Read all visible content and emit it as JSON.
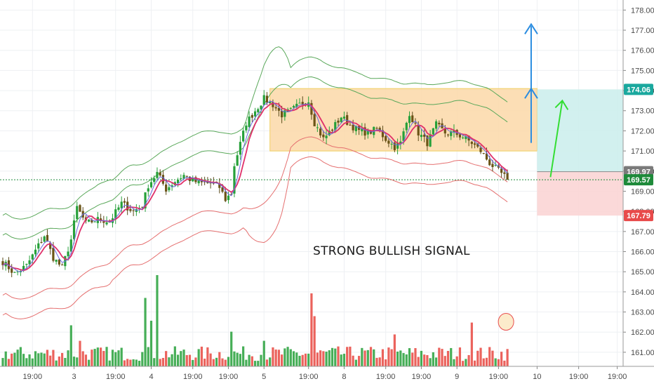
{
  "chart_data": {
    "type": "candlestick",
    "ylim": [
      160.3,
      178.5
    ],
    "y_ticks": [
      "161.00",
      "162.00",
      "163.00",
      "164.00",
      "165.00",
      "166.00",
      "167.00",
      "168.00",
      "169.00",
      "170.00",
      "171.00",
      "172.00",
      "173.00",
      "174.00",
      "175.00",
      "176.00",
      "177.00",
      "178.00"
    ],
    "x_ticks": [
      {
        "label": "19:00",
        "bar": 10
      },
      {
        "label": "3",
        "bar": 24
      },
      {
        "label": "19:00",
        "bar": 38
      },
      {
        "label": "4",
        "bar": 50
      },
      {
        "label": "19:00",
        "bar": 64
      },
      {
        "label": "19:00",
        "bar": 76
      },
      {
        "label": "5",
        "bar": 88
      },
      {
        "label": "19:00",
        "bar": 103
      },
      {
        "label": "8",
        "bar": 115
      },
      {
        "label": "19:00",
        "bar": 129
      },
      {
        "label": "19:00",
        "bar": 141
      },
      {
        "label": "9",
        "bar": 153
      },
      {
        "label": "19:00",
        "bar": 167
      },
      {
        "label": "10",
        "bar": 180
      },
      {
        "label": "19:00",
        "bar": 194
      },
      {
        "label": "19:00",
        "bar": 207
      }
    ],
    "price_tags": [
      {
        "label": "174.06",
        "value": 174.06,
        "color": "#1aa89e"
      },
      {
        "label": "169.97",
        "value": 169.97,
        "color": "#7a7a7a"
      },
      {
        "label": "169.57",
        "value": 169.57,
        "color": "#1e8a3a"
      },
      {
        "label": "167.79",
        "value": 167.79,
        "color": "#e84a4a"
      }
    ],
    "annotation": "STRONG BULLISH SIGNAL",
    "current_price": 169.57,
    "range_box": {
      "from_bar": 90,
      "to_bar": 180,
      "low": 171.0,
      "high": 174.1
    },
    "target_zone": {
      "from_bar": 180,
      "to_bar": 215,
      "entry": 169.97,
      "target": 174.06,
      "stop": 167.79
    },
    "colors": {
      "up": "#26a03a",
      "down": "#e8463f",
      "band_upper": "#5aa85a",
      "band_lower": "#e57070",
      "ma_fast": "#e0306a",
      "ma_slow": "#6a6ae0",
      "box_fill": "#fbd8a8",
      "box_border": "#f0d060",
      "arrow_blue": "#2a8ce0",
      "arrow_green": "#33dd33"
    },
    "keyframes": [
      [
        0,
        165.5
      ],
      [
        4,
        164.9
      ],
      [
        8,
        165.3
      ],
      [
        12,
        166.3
      ],
      [
        14,
        166.8
      ],
      [
        17,
        165.7
      ],
      [
        20,
        165.2
      ],
      [
        23,
        166.6
      ],
      [
        25,
        168.2
      ],
      [
        28,
        167.4
      ],
      [
        32,
        167.6
      ],
      [
        36,
        167.5
      ],
      [
        40,
        168.4
      ],
      [
        44,
        168.0
      ],
      [
        47,
        168.3
      ],
      [
        49,
        169.3
      ],
      [
        52,
        169.9
      ],
      [
        55,
        169.1
      ],
      [
        58,
        169.5
      ],
      [
        61,
        169.8
      ],
      [
        64,
        169.5
      ],
      [
        67,
        169.4
      ],
      [
        70,
        169.4
      ],
      [
        73,
        169.2
      ],
      [
        75,
        168.6
      ],
      [
        77,
        168.9
      ],
      [
        78,
        170.3
      ],
      [
        82,
        172.4
      ],
      [
        85,
        173.0
      ],
      [
        88,
        173.6
      ],
      [
        91,
        173.3
      ],
      [
        94,
        172.8
      ],
      [
        97,
        173.0
      ],
      [
        100,
        173.3
      ],
      [
        103,
        173.5
      ],
      [
        105,
        172.4
      ],
      [
        108,
        171.6
      ],
      [
        111,
        172.1
      ],
      [
        114,
        172.7
      ],
      [
        117,
        172.3
      ],
      [
        120,
        172.0
      ],
      [
        123,
        171.9
      ],
      [
        126,
        172.1
      ],
      [
        129,
        171.6
      ],
      [
        132,
        171.2
      ],
      [
        134,
        171.4
      ],
      [
        137,
        172.9
      ],
      [
        140,
        171.9
      ],
      [
        143,
        171.4
      ],
      [
        146,
        172.3
      ],
      [
        149,
        171.9
      ],
      [
        152,
        171.9
      ],
      [
        155,
        171.7
      ],
      [
        158,
        171.4
      ],
      [
        161,
        171.0
      ],
      [
        164,
        170.4
      ],
      [
        167,
        170.0
      ],
      [
        170,
        169.6
      ]
    ],
    "vol_spikes": [
      [
        23,
        0.45
      ],
      [
        26,
        0.28
      ],
      [
        50,
        0.5
      ],
      [
        48,
        0.75
      ],
      [
        52,
        1.0
      ],
      [
        77,
        0.38
      ],
      [
        88,
        0.28
      ],
      [
        104,
        0.8
      ],
      [
        105,
        0.55
      ],
      [
        132,
        0.35
      ],
      [
        158,
        0.48
      ],
      [
        176,
        0.22
      ],
      [
        179,
        0.55
      ]
    ]
  }
}
